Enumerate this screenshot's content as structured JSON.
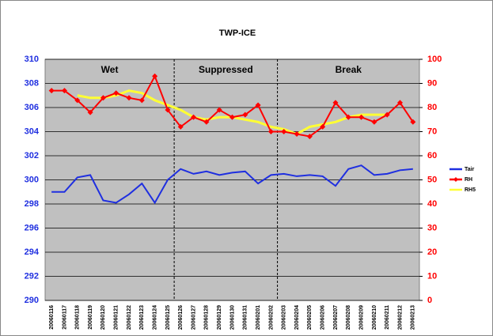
{
  "chart_data": {
    "type": "line",
    "title": "TWP-ICE",
    "categories": [
      "20060116",
      "20060117",
      "20060118",
      "20060119",
      "20060120",
      "20060121",
      "20060122",
      "20060123",
      "20060124",
      "20060125",
      "20060126",
      "20060127",
      "20060128",
      "20060129",
      "20060130",
      "20060131",
      "20060201",
      "20060202",
      "20060203",
      "20060204",
      "20060205",
      "20060206",
      "20060207",
      "20060208",
      "20060209",
      "20060210",
      "20060211",
      "20060212",
      "20060213"
    ],
    "series": [
      {
        "name": "Tair",
        "color": "#1f2fe0",
        "axis": "y",
        "values": [
          299.0,
          299.0,
          300.2,
          300.4,
          298.3,
          298.1,
          298.8,
          299.7,
          298.1,
          300.0,
          300.9,
          300.5,
          300.7,
          300.4,
          300.6,
          300.7,
          299.7,
          300.4,
          300.5,
          300.3,
          300.4,
          300.3,
          299.5,
          300.9,
          301.2,
          300.4,
          300.5,
          300.8,
          300.9
        ]
      },
      {
        "name": "RH",
        "color": "#ff0000",
        "axis": "y2",
        "markers": true,
        "values": [
          87,
          87,
          83,
          78,
          84,
          86,
          84,
          83,
          93,
          79,
          72,
          76,
          74,
          79,
          76,
          77,
          81,
          70,
          70,
          69,
          68,
          72,
          82,
          76,
          76,
          74,
          77,
          82,
          74
        ]
      },
      {
        "name": "RH5",
        "color": "#ffff33",
        "axis": "y2",
        "values": [
          null,
          null,
          85,
          84,
          84,
          85,
          87,
          86,
          83,
          81,
          79,
          76,
          75,
          76,
          76,
          75,
          74,
          72,
          71,
          69,
          72,
          73,
          74,
          76,
          77,
          77,
          77,
          null,
          null
        ]
      }
    ],
    "periods": [
      {
        "label": "Wet",
        "start": "20060116",
        "end": "20060125"
      },
      {
        "label": "Suppressed",
        "start": "20060126",
        "end": "20060202"
      },
      {
        "label": "Break",
        "start": "20060203",
        "end": "20060213"
      }
    ],
    "ylim": [
      290,
      310
    ],
    "yticks": [
      290,
      292,
      294,
      296,
      298,
      300,
      302,
      304,
      306,
      308,
      310
    ],
    "y2lim": [
      0,
      100
    ],
    "y2ticks": [
      0,
      10,
      20,
      30,
      40,
      50,
      60,
      70,
      80,
      90,
      100
    ],
    "grid": true,
    "legend": "right"
  }
}
